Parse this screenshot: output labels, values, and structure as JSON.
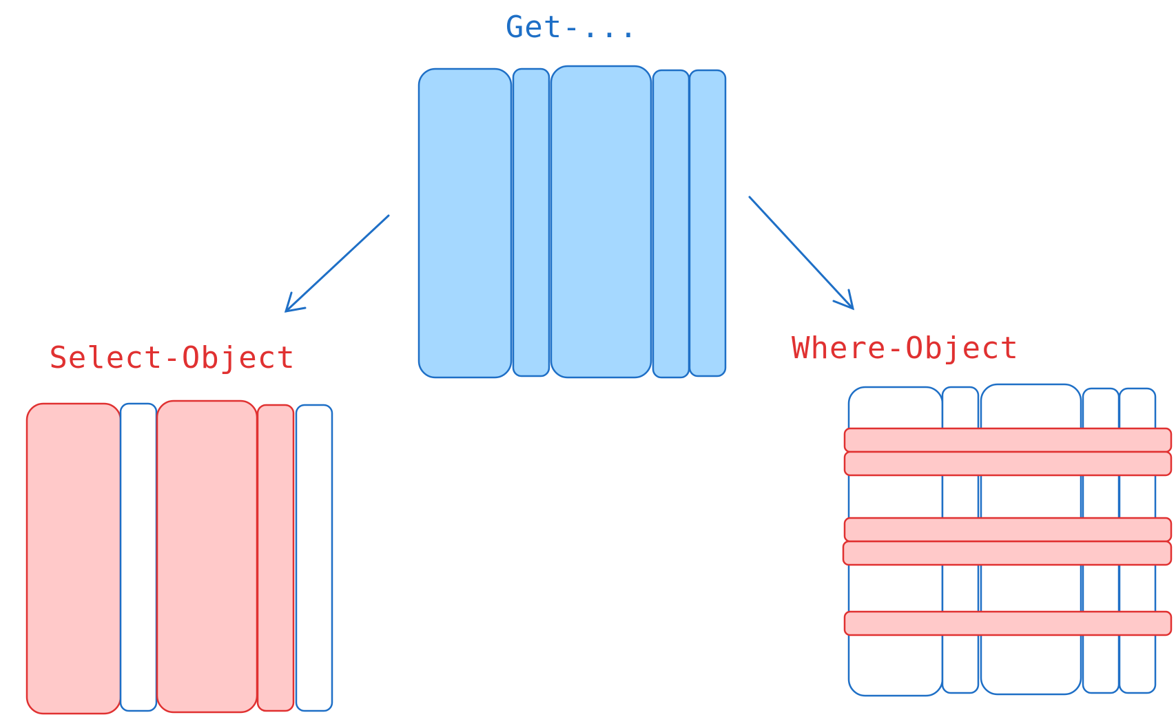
{
  "labels": {
    "top": "Get-...",
    "left": "Select-Object",
    "right": "Where-Object"
  },
  "colors": {
    "blue_stroke": "#1e6fc6",
    "blue_fill": "#a5d8ff",
    "red_stroke": "#e03131",
    "red_fill": "#ffc9c9",
    "background": "#ffffff"
  },
  "top_table": {
    "columns": 5
  },
  "select_table": {
    "columns": 5,
    "selected_columns": [
      1,
      3,
      4
    ]
  },
  "where_table": {
    "columns": 5,
    "filtered_rows": 5
  }
}
